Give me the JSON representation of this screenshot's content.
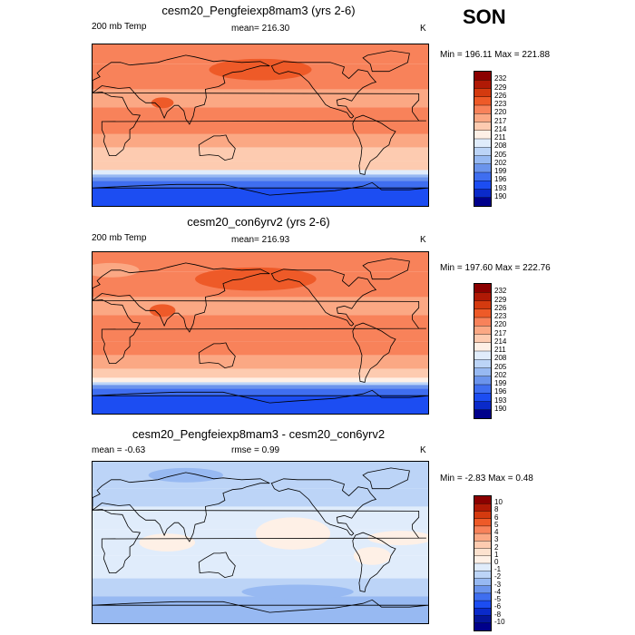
{
  "season": "SON",
  "panels": [
    {
      "title": "cesm20_Pengfeiexp8mam3 (yrs 2-6)",
      "left_label": "200 mb Temp",
      "center_label": "mean= 216.30",
      "right_label": "K",
      "minmax": "Min = 196.11 Max = 221.88",
      "colorbar_labels": [
        "232",
        "229",
        "226",
        "223",
        "220",
        "217",
        "214",
        "211",
        "208",
        "205",
        "202",
        "199",
        "196",
        "193",
        "190"
      ],
      "colors": [
        "#8b0000",
        "#b01905",
        "#d43a0f",
        "#ee5a28",
        "#f8825a",
        "#fba884",
        "#fdcbb0",
        "#fef0e6",
        "#e0ecfb",
        "#bcd4f7",
        "#97b9f2",
        "#6b94ec",
        "#3f6ef0",
        "#1c4df2",
        "#0a2aca",
        "#00008b"
      ],
      "bands": [
        {
          "lat_from": 90,
          "lat_to": 68,
          "color": "#f8825a"
        },
        {
          "lat_from": 68,
          "lat_to": 40,
          "color": "#f8825a"
        },
        {
          "lat_from": 40,
          "lat_to": 20,
          "color": "#fba884"
        },
        {
          "lat_from": 20,
          "lat_to": -10,
          "color": "#f8825a"
        },
        {
          "lat_from": -10,
          "lat_to": -25,
          "color": "#fba884"
        },
        {
          "lat_from": -25,
          "lat_to": -40,
          "color": "#fdcbb0"
        },
        {
          "lat_from": -40,
          "lat_to": -50,
          "color": "#fdcbb0"
        },
        {
          "lat_from": -50,
          "lat_to": -55,
          "color": "#e0ecfb"
        },
        {
          "lat_from": -55,
          "lat_to": -58,
          "color": "#97b9f2"
        },
        {
          "lat_from": -58,
          "lat_to": -62,
          "color": "#6b94ec"
        },
        {
          "lat_from": -62,
          "lat_to": -70,
          "color": "#3f6ef0"
        },
        {
          "lat_from": -70,
          "lat_to": -90,
          "color": "#1c4df2"
        }
      ],
      "blobs": [
        {
          "lon": 180,
          "lat": 62,
          "rx": 55,
          "ry": 12,
          "color": "#ee5a28"
        },
        {
          "lon": 75,
          "lat": 25,
          "rx": 12,
          "ry": 6,
          "color": "#ee5a28"
        },
        {
          "lon": 160,
          "lat": 30,
          "rx": 40,
          "ry": 8,
          "color": "#fba884"
        },
        {
          "lon": 0,
          "lat": 28,
          "rx": 30,
          "ry": 7,
          "color": "#fba884"
        }
      ]
    },
    {
      "title": "cesm20_con6yrv2 (yrs 2-6)",
      "left_label": "200 mb Temp",
      "center_label": "mean= 216.93",
      "right_label": "K",
      "minmax": "Min = 197.60 Max = 222.76",
      "colorbar_labels": [
        "232",
        "229",
        "226",
        "223",
        "220",
        "217",
        "214",
        "211",
        "208",
        "205",
        "202",
        "199",
        "196",
        "193",
        "190"
      ],
      "colors": [
        "#8b0000",
        "#b01905",
        "#d43a0f",
        "#ee5a28",
        "#f8825a",
        "#fba884",
        "#fdcbb0",
        "#fef0e6",
        "#e0ecfb",
        "#bcd4f7",
        "#97b9f2",
        "#6b94ec",
        "#3f6ef0",
        "#1c4df2",
        "#0a2aca",
        "#00008b"
      ],
      "bands": [
        {
          "lat_from": 90,
          "lat_to": 68,
          "color": "#f8825a"
        },
        {
          "lat_from": 68,
          "lat_to": 40,
          "color": "#f8825a"
        },
        {
          "lat_from": 40,
          "lat_to": 20,
          "color": "#fba884"
        },
        {
          "lat_from": 20,
          "lat_to": -10,
          "color": "#f8825a"
        },
        {
          "lat_from": -10,
          "lat_to": -25,
          "color": "#f8825a"
        },
        {
          "lat_from": -25,
          "lat_to": -40,
          "color": "#fba884"
        },
        {
          "lat_from": -40,
          "lat_to": -50,
          "color": "#fdcbb0"
        },
        {
          "lat_from": -50,
          "lat_to": -55,
          "color": "#fef0e6"
        },
        {
          "lat_from": -55,
          "lat_to": -58,
          "color": "#bcd4f7"
        },
        {
          "lat_from": -58,
          "lat_to": -62,
          "color": "#6b94ec"
        },
        {
          "lat_from": -62,
          "lat_to": -70,
          "color": "#3f6ef0"
        },
        {
          "lat_from": -70,
          "lat_to": -90,
          "color": "#1c4df2"
        }
      ],
      "blobs": [
        {
          "lon": 175,
          "lat": 60,
          "rx": 65,
          "ry": 13,
          "color": "#ee5a28"
        },
        {
          "lon": 75,
          "lat": 25,
          "rx": 14,
          "ry": 7,
          "color": "#ee5a28"
        },
        {
          "lon": 205,
          "lat": 30,
          "rx": 45,
          "ry": 8,
          "color": "#fba884"
        },
        {
          "lon": 20,
          "lat": 70,
          "rx": 30,
          "ry": 8,
          "color": "#fba884"
        }
      ]
    },
    {
      "title": "cesm20_Pengfeiexp8mam3 - cesm20_con6yrv2",
      "left_label": "mean =  -0.63",
      "center_label": "rmse =   0.99",
      "right_label": "K",
      "minmax": "Min =  -2.83 Max =   0.48",
      "colorbar_labels": [
        "10",
        "8",
        "6",
        "5",
        "4",
        "3",
        "2",
        "1",
        "0",
        "-1",
        "-2",
        "-3",
        "-4",
        "-5",
        "-6",
        "-8",
        "-10"
      ],
      "colors": [
        "#8b0000",
        "#b01905",
        "#d43a0f",
        "#ee5a28",
        "#f8825a",
        "#fba884",
        "#fdcbb0",
        "#fde2cf",
        "#fef0e6",
        "#e0ecfb",
        "#bcd4f7",
        "#97b9f2",
        "#6b94ec",
        "#3f6ef0",
        "#1c4df2",
        "#0a2aca",
        "#05159a",
        "#00008b"
      ],
      "bands": [
        {
          "lat_from": 90,
          "lat_to": 60,
          "color": "#bcd4f7"
        },
        {
          "lat_from": 60,
          "lat_to": 40,
          "color": "#bcd4f7"
        },
        {
          "lat_from": 40,
          "lat_to": 15,
          "color": "#e0ecfb"
        },
        {
          "lat_from": 15,
          "lat_to": -15,
          "color": "#e0ecfb"
        },
        {
          "lat_from": -15,
          "lat_to": -40,
          "color": "#e0ecfb"
        },
        {
          "lat_from": -40,
          "lat_to": -60,
          "color": "#bcd4f7"
        },
        {
          "lat_from": -60,
          "lat_to": -90,
          "color": "#97b9f2"
        }
      ],
      "blobs": [
        {
          "lon": 215,
          "lat": 10,
          "rx": 40,
          "ry": 18,
          "color": "#fef0e6"
        },
        {
          "lon": 80,
          "lat": 0,
          "rx": 30,
          "ry": 10,
          "color": "#fef0e6"
        },
        {
          "lon": 330,
          "lat": 5,
          "rx": 35,
          "ry": 8,
          "color": "#fef0e6"
        },
        {
          "lon": 300,
          "lat": -15,
          "rx": 20,
          "ry": 10,
          "color": "#fef0e6"
        },
        {
          "lon": 100,
          "lat": 75,
          "rx": 40,
          "ry": 8,
          "color": "#97b9f2"
        },
        {
          "lon": 220,
          "lat": -55,
          "rx": 60,
          "ry": 8,
          "color": "#97b9f2"
        }
      ]
    }
  ],
  "chart_data": [
    {
      "type": "heatmap",
      "title": "cesm20_Pengfeiexp8mam3 (yrs 2-6)",
      "variable": "200 mb Temp",
      "units": "K",
      "mean": 216.3,
      "min": 196.11,
      "max": 221.88,
      "colorbar_levels": [
        190,
        193,
        196,
        199,
        202,
        205,
        208,
        211,
        214,
        217,
        220,
        223,
        226,
        229,
        232
      ]
    },
    {
      "type": "heatmap",
      "title": "cesm20_con6yrv2 (yrs 2-6)",
      "variable": "200 mb Temp",
      "units": "K",
      "mean": 216.93,
      "min": 197.6,
      "max": 222.76,
      "colorbar_levels": [
        190,
        193,
        196,
        199,
        202,
        205,
        208,
        211,
        214,
        217,
        220,
        223,
        226,
        229,
        232
      ]
    },
    {
      "type": "heatmap",
      "title": "cesm20_Pengfeiexp8mam3 - cesm20_con6yrv2",
      "units": "K",
      "mean": -0.63,
      "rmse": 0.99,
      "min": -2.83,
      "max": 0.48,
      "colorbar_levels": [
        -10,
        -8,
        -6,
        -5,
        -4,
        -3,
        -2,
        -1,
        0,
        1,
        2,
        3,
        4,
        5,
        6,
        8,
        10
      ]
    }
  ]
}
